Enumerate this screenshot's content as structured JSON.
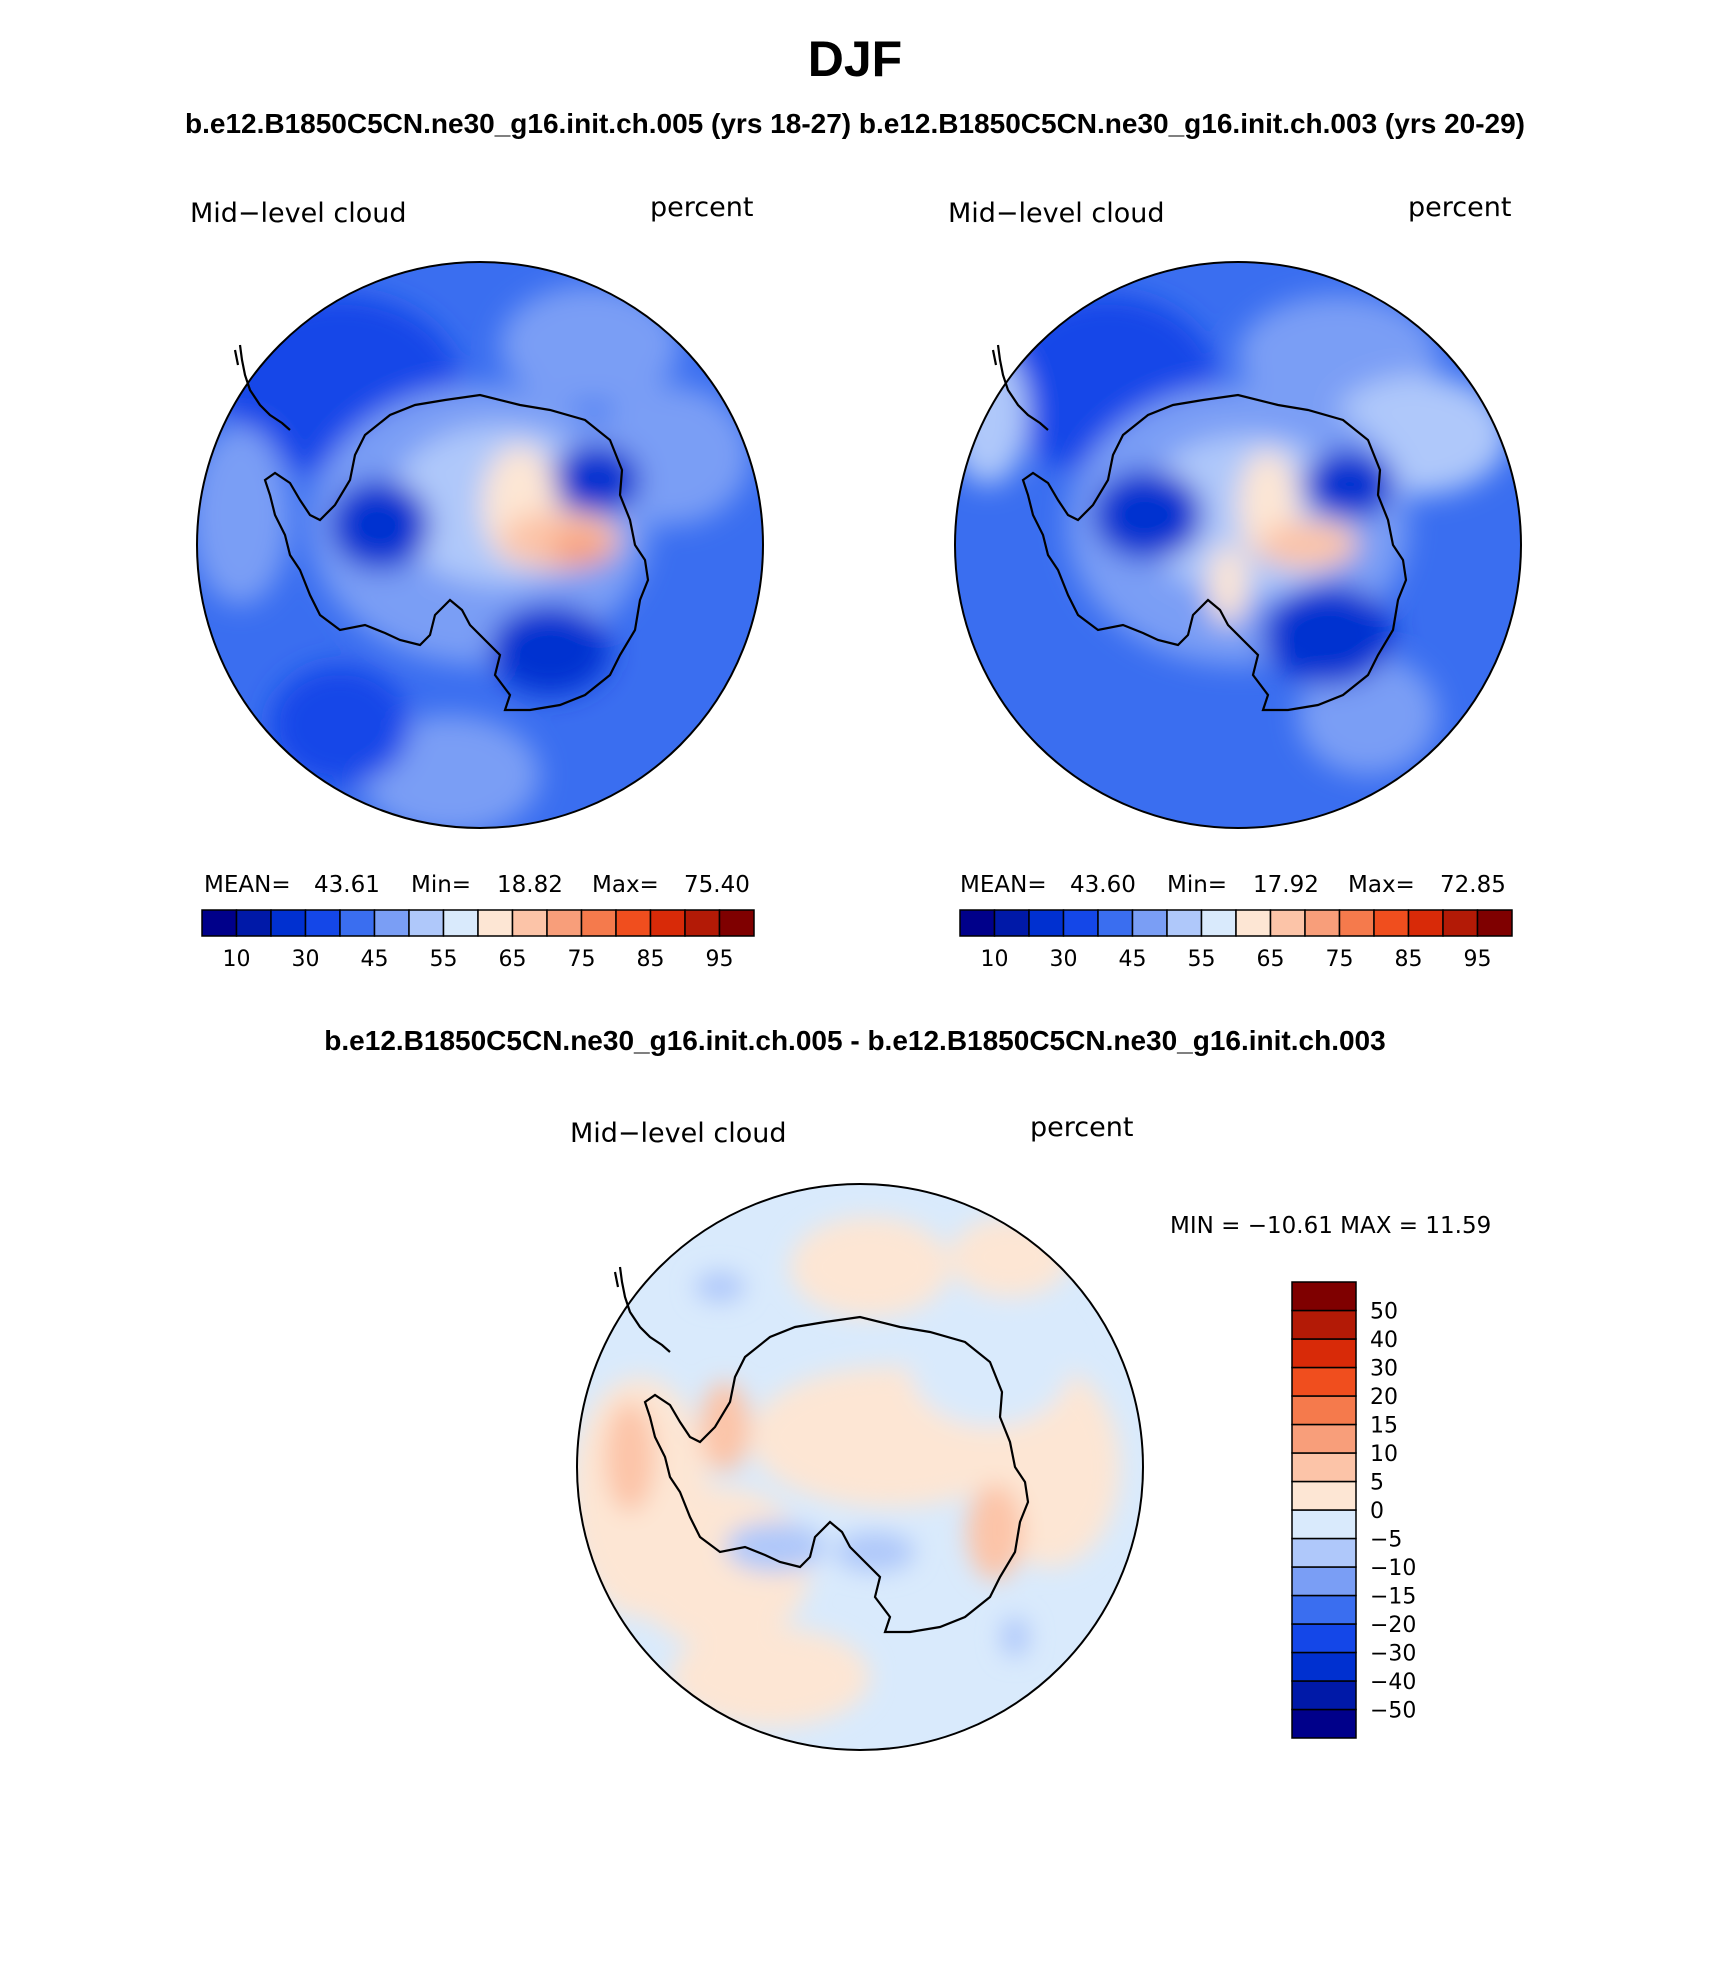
{
  "figure": {
    "season": "DJF",
    "top_title": "b.e12.B1850C5CN.ne30_g16.init.ch.005 (yrs 18-27) b.e12.B1850C5CN.ne30_g16.init.ch.003 (yrs 20-29)",
    "diff_title": "b.e12.B1850C5CN.ne30_g16.init.ch.005 - b.e12.B1850C5CN.ne30_g16.init.ch.003"
  },
  "panels": [
    {
      "variable": "Mid−level cloud",
      "units": "percent",
      "stats": {
        "mean_label": "MEAN=",
        "mean": "43.61",
        "min_label": "Min=",
        "min": "18.82",
        "max_label": "Max=",
        "max": "75.40"
      }
    },
    {
      "variable": "Mid−level cloud",
      "units": "percent",
      "stats": {
        "mean_label": "MEAN=",
        "mean": "43.60",
        "min_label": "Min=",
        "min": "17.92",
        "max_label": "Max=",
        "max": "72.85"
      }
    }
  ],
  "diff_panel": {
    "variable": "Mid−level cloud",
    "units": "percent",
    "minmax": "MIN = −10.61  MAX =   11.59"
  },
  "colorbar_main": {
    "colors": [
      "#00008a",
      "#0019a8",
      "#0030d0",
      "#1447e8",
      "#3a6ef0",
      "#7a9ef5",
      "#afc8fa",
      "#d9eafc",
      "#fde6d4",
      "#fcc4a8",
      "#f89e7a",
      "#f57a4c",
      "#f04e1e",
      "#d82a08",
      "#b31a06",
      "#7f0000"
    ],
    "tick_labels": [
      "10",
      "30",
      "45",
      "55",
      "65",
      "75",
      "85",
      "95"
    ]
  },
  "colorbar_diff": {
    "colors": [
      "#00008a",
      "#0019a8",
      "#0030d0",
      "#1447e8",
      "#3a6ef0",
      "#7a9ef5",
      "#afc8fa",
      "#d9eafc",
      "#fde6d4",
      "#fcc4a8",
      "#f89e7a",
      "#f57a4c",
      "#f04e1e",
      "#d82a08",
      "#b31a06",
      "#7f0000"
    ],
    "tick_labels": [
      "50",
      "40",
      "30",
      "20",
      "15",
      "10",
      "5",
      "0",
      "−5",
      "−10",
      "−15",
      "−20",
      "−30",
      "−40",
      "−50"
    ]
  }
}
